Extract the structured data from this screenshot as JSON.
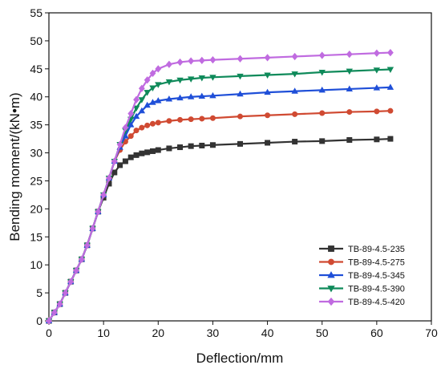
{
  "chart_data": {
    "type": "line",
    "xlabel": "Deflection/mm",
    "ylabel": "Bending moment/(kN•m)",
    "xlim": [
      0,
      70
    ],
    "ylim": [
      0,
      55
    ],
    "xticks": [
      0,
      10,
      20,
      30,
      40,
      50,
      60,
      70
    ],
    "yticks": [
      0,
      5,
      10,
      15,
      20,
      25,
      30,
      35,
      40,
      45,
      50,
      55
    ],
    "grid": false,
    "legend_position": "bottom-right",
    "series": [
      {
        "name": "TB-89-4.5-235",
        "color": "#333333",
        "marker": "square",
        "points": [
          [
            0,
            0
          ],
          [
            1,
            1.5
          ],
          [
            2,
            3
          ],
          [
            3,
            5
          ],
          [
            4,
            7
          ],
          [
            5,
            9
          ],
          [
            6,
            11
          ],
          [
            7,
            13.5
          ],
          [
            8,
            16.5
          ],
          [
            9,
            19.5
          ],
          [
            10,
            22
          ],
          [
            11,
            24.5
          ],
          [
            12,
            26.5
          ],
          [
            13,
            27.8
          ],
          [
            14,
            28.5
          ],
          [
            15,
            29.2
          ],
          [
            16,
            29.6
          ],
          [
            17,
            29.9
          ],
          [
            18,
            30.1
          ],
          [
            19,
            30.3
          ],
          [
            20,
            30.5
          ],
          [
            22,
            30.8
          ],
          [
            24,
            31
          ],
          [
            26,
            31.2
          ],
          [
            28,
            31.3
          ],
          [
            30,
            31.4
          ],
          [
            35,
            31.6
          ],
          [
            40,
            31.8
          ],
          [
            45,
            32
          ],
          [
            50,
            32.1
          ],
          [
            55,
            32.3
          ],
          [
            60,
            32.4
          ],
          [
            62.5,
            32.5
          ]
        ]
      },
      {
        "name": "TB-89-4.5-275",
        "color": "#d04a32",
        "marker": "circle",
        "points": [
          [
            0,
            0
          ],
          [
            1,
            1.5
          ],
          [
            2,
            3
          ],
          [
            3,
            5
          ],
          [
            4,
            7
          ],
          [
            5,
            9
          ],
          [
            6,
            11
          ],
          [
            7,
            13.5
          ],
          [
            8,
            16.5
          ],
          [
            9,
            19.5
          ],
          [
            10,
            22.5
          ],
          [
            11,
            25.5
          ],
          [
            12,
            28.5
          ],
          [
            13,
            30.5
          ],
          [
            14,
            32
          ],
          [
            15,
            33
          ],
          [
            16,
            34
          ],
          [
            17,
            34.5
          ],
          [
            18,
            34.9
          ],
          [
            19,
            35.2
          ],
          [
            20,
            35.4
          ],
          [
            22,
            35.7
          ],
          [
            24,
            35.9
          ],
          [
            26,
            36
          ],
          [
            28,
            36.1
          ],
          [
            30,
            36.2
          ],
          [
            35,
            36.5
          ],
          [
            40,
            36.7
          ],
          [
            45,
            36.9
          ],
          [
            50,
            37.1
          ],
          [
            55,
            37.3
          ],
          [
            60,
            37.4
          ],
          [
            62.5,
            37.5
          ]
        ]
      },
      {
        "name": "TB-89-4.5-345",
        "color": "#1f4fd8",
        "marker": "triangle-up",
        "points": [
          [
            0,
            0
          ],
          [
            1,
            1.5
          ],
          [
            2,
            3
          ],
          [
            3,
            5
          ],
          [
            4,
            7
          ],
          [
            5,
            9
          ],
          [
            6,
            11
          ],
          [
            7,
            13.5
          ],
          [
            8,
            16.5
          ],
          [
            9,
            19.5
          ],
          [
            10,
            22.5
          ],
          [
            11,
            25.5
          ],
          [
            12,
            28.5
          ],
          [
            13,
            31
          ],
          [
            14,
            33
          ],
          [
            15,
            35
          ],
          [
            16,
            36.5
          ],
          [
            17,
            37.5
          ],
          [
            18,
            38.5
          ],
          [
            19,
            39
          ],
          [
            20,
            39.3
          ],
          [
            22,
            39.6
          ],
          [
            24,
            39.8
          ],
          [
            26,
            40
          ],
          [
            28,
            40.1
          ],
          [
            30,
            40.2
          ],
          [
            35,
            40.5
          ],
          [
            40,
            40.8
          ],
          [
            45,
            41
          ],
          [
            50,
            41.2
          ],
          [
            55,
            41.4
          ],
          [
            60,
            41.6
          ],
          [
            62.5,
            41.7
          ]
        ]
      },
      {
        "name": "TB-89-4.5-390",
        "color": "#0f8a5a",
        "marker": "triangle-down",
        "points": [
          [
            0,
            0
          ],
          [
            1,
            1.5
          ],
          [
            2,
            3
          ],
          [
            3,
            5
          ],
          [
            4,
            7
          ],
          [
            5,
            9
          ],
          [
            6,
            11
          ],
          [
            7,
            13.5
          ],
          [
            8,
            16.5
          ],
          [
            9,
            19.5
          ],
          [
            10,
            22.5
          ],
          [
            11,
            25.5
          ],
          [
            12,
            28.5
          ],
          [
            13,
            31.5
          ],
          [
            14,
            34
          ],
          [
            15,
            36
          ],
          [
            16,
            38
          ],
          [
            17,
            39.5
          ],
          [
            18,
            40.8
          ],
          [
            19,
            41.6
          ],
          [
            20,
            42.2
          ],
          [
            22,
            42.7
          ],
          [
            24,
            43
          ],
          [
            26,
            43.2
          ],
          [
            28,
            43.4
          ],
          [
            30,
            43.5
          ],
          [
            35,
            43.7
          ],
          [
            40,
            43.9
          ],
          [
            45,
            44.1
          ],
          [
            50,
            44.4
          ],
          [
            55,
            44.6
          ],
          [
            60,
            44.8
          ],
          [
            62.5,
            44.9
          ]
        ]
      },
      {
        "name": "TB-89-4.5-420",
        "color": "#c06be0",
        "marker": "diamond",
        "points": [
          [
            0,
            0
          ],
          [
            1,
            1.5
          ],
          [
            2,
            3
          ],
          [
            3,
            5
          ],
          [
            4,
            7
          ],
          [
            5,
            9
          ],
          [
            6,
            11
          ],
          [
            7,
            13.5
          ],
          [
            8,
            16.5
          ],
          [
            9,
            19.5
          ],
          [
            10,
            22.5
          ],
          [
            11,
            25.5
          ],
          [
            12,
            28.5
          ],
          [
            13,
            31.5
          ],
          [
            14,
            34.5
          ],
          [
            15,
            37
          ],
          [
            16,
            39.5
          ],
          [
            17,
            41.5
          ],
          [
            18,
            43
          ],
          [
            19,
            44.2
          ],
          [
            20,
            45
          ],
          [
            22,
            45.8
          ],
          [
            24,
            46.2
          ],
          [
            26,
            46.4
          ],
          [
            28,
            46.5
          ],
          [
            30,
            46.6
          ],
          [
            35,
            46.8
          ],
          [
            40,
            47
          ],
          [
            45,
            47.2
          ],
          [
            50,
            47.4
          ],
          [
            55,
            47.6
          ],
          [
            60,
            47.8
          ],
          [
            62.5,
            47.9
          ]
        ]
      }
    ]
  }
}
